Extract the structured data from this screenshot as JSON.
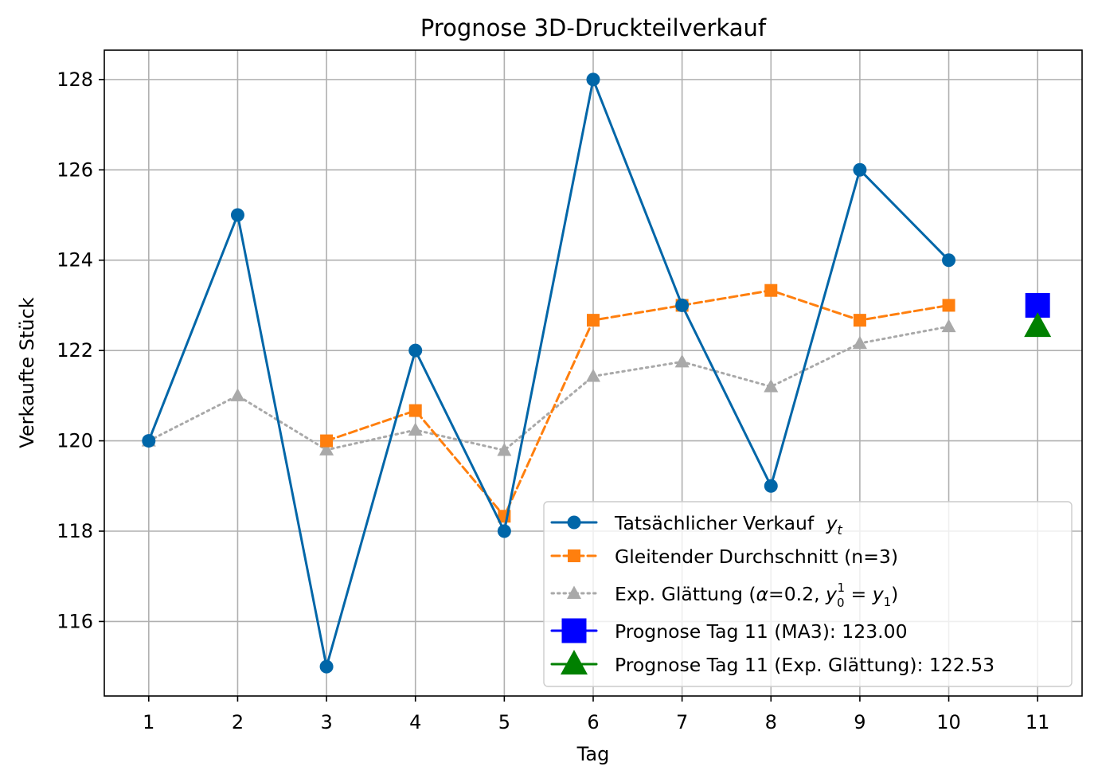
{
  "chart_data": {
    "type": "line",
    "title": "Prognose 3D-Druckteilverkauf",
    "xlabel": "Tag",
    "ylabel": "Verkaufte Stück",
    "xlim": [
      0.5,
      11.5
    ],
    "ylim": [
      114.35,
      128.65
    ],
    "xticks": [
      "1",
      "2",
      "3",
      "4",
      "5",
      "6",
      "7",
      "8",
      "9",
      "10",
      "11"
    ],
    "yticks": [
      "116",
      "118",
      "120",
      "122",
      "124",
      "126",
      "128"
    ],
    "grid": true,
    "legend_position": "lower-right",
    "series": [
      {
        "name": "Tatsächlicher Verkauf",
        "name_math": "y",
        "name_sub": "t",
        "color": "#0066a8",
        "style": "solid",
        "marker": "circle",
        "x": [
          1,
          2,
          3,
          4,
          5,
          6,
          7,
          8,
          9,
          10
        ],
        "values": [
          120,
          125,
          115,
          122,
          118,
          128,
          123,
          119,
          126,
          124
        ]
      },
      {
        "name": "Gleitender Durchschnitt (n=3)",
        "color": "#ff7f0e",
        "style": "dashed",
        "marker": "square",
        "x": [
          3,
          4,
          5,
          6,
          7,
          8,
          9,
          10
        ],
        "values": [
          120.0,
          120.67,
          118.33,
          122.67,
          123.0,
          123.33,
          122.67,
          123.0
        ]
      },
      {
        "name": "Exp. Glättung (α=0.2, y₀¹ = y₁)",
        "name_prefix": "Exp. Glättung (",
        "name_alpha": "α",
        "name_alpha_val": "=0.2, ",
        "name_y0": "y",
        "name_y0_sub": "0",
        "name_y0_sup": "1",
        "name_eq": " = ",
        "name_y1": "y",
        "name_y1_sub": "1",
        "name_suffix": ")",
        "color": "#a9a9a9",
        "style": "dotted",
        "marker": "triangle",
        "x": [
          1,
          2,
          3,
          4,
          5,
          6,
          7,
          8,
          9,
          10
        ],
        "values": [
          120.0,
          121.0,
          119.8,
          120.24,
          119.79,
          121.43,
          121.75,
          121.2,
          122.16,
          122.53
        ]
      },
      {
        "name": "Prognose Tag 11 (MA3): 123.00",
        "color": "#0000ff",
        "style": "none",
        "marker": "big-square",
        "x": [
          11
        ],
        "values": [
          123.0
        ]
      },
      {
        "name": "Prognose Tag 11 (Exp. Glättung): 122.53",
        "color": "#008000",
        "style": "none",
        "marker": "big-triangle",
        "x": [
          11
        ],
        "values": [
          122.53
        ]
      }
    ]
  }
}
